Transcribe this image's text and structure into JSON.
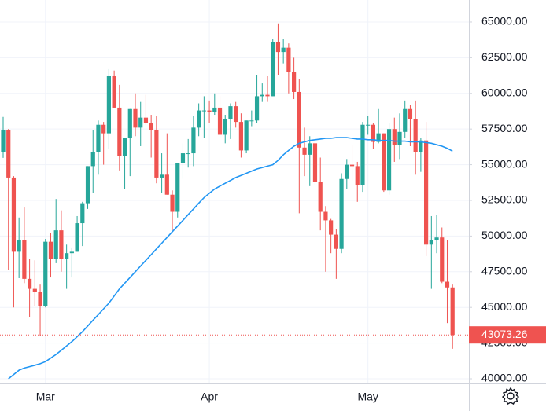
{
  "chart_data": {
    "type": "candlestick",
    "up_color": "#26a69a",
    "down_color": "#ef5350",
    "grid": true,
    "ylim": [
      39670,
      66540
    ],
    "yticks": [
      {
        "value": 40000,
        "label": "40000.00"
      },
      {
        "value": 42500,
        "label": "42500.00"
      },
      {
        "value": 45000,
        "label": "45000.00"
      },
      {
        "value": 47500,
        "label": "47500.00"
      },
      {
        "value": 50000,
        "label": "50000.00"
      },
      {
        "value": 52500,
        "label": "52500.00"
      },
      {
        "value": 55000,
        "label": "55000.00"
      },
      {
        "value": 57500,
        "label": "57500.00"
      },
      {
        "value": 60000,
        "label": "60000.00"
      },
      {
        "value": 62500,
        "label": "62500.00"
      },
      {
        "value": 65000,
        "label": "65000.00"
      }
    ],
    "categories": [
      null,
      null,
      null,
      null,
      null,
      null,
      null,
      null,
      "Mar",
      null,
      null,
      null,
      null,
      null,
      null,
      null,
      null,
      null,
      null,
      null,
      null,
      null,
      null,
      null,
      null,
      null,
      null,
      null,
      null,
      null,
      null,
      null,
      null,
      null,
      null,
      null,
      null,
      null,
      null,
      "Apr",
      null,
      null,
      null,
      null,
      null,
      null,
      null,
      null,
      null,
      null,
      null,
      null,
      null,
      null,
      null,
      null,
      null,
      null,
      null,
      null,
      null,
      null,
      null,
      null,
      null,
      null,
      null,
      null,
      null,
      "May",
      null,
      null,
      null,
      null,
      null,
      null,
      null,
      null,
      null,
      null,
      null,
      null,
      null,
      null,
      null,
      null
    ],
    "open": [
      55900,
      57400,
      54100,
      48900,
      49700,
      47000,
      46300,
      46100,
      45100,
      49600,
      48400,
      50400,
      48400,
      48800,
      48900,
      50900,
      52300,
      54900,
      55900,
      57800,
      57200,
      61200,
      59000,
      55600,
      56900,
      58900,
      57600,
      58300,
      57900,
      57400,
      54100,
      54300,
      52900,
      51700,
      55100,
      55800,
      55800,
      57600,
      58800,
      58800,
      58700,
      59000,
      57100,
      58200,
      59100,
      58000,
      56000,
      58100,
      58100,
      59800,
      59900,
      59800,
      63600,
      62900,
      63200,
      61500,
      60100,
      56200,
      55700,
      56500,
      53800,
      51700,
      51100,
      50100,
      49100,
      54000,
      55000,
      54900,
      53600,
      57800,
      57800,
      56600,
      57200,
      53200,
      57500,
      56400,
      57300,
      58900,
      58200,
      55900,
      56700,
      49400,
      49700,
      49900,
      46800,
      46400
    ],
    "high": [
      58350,
      57500,
      54200,
      51300,
      52000,
      48400,
      48300,
      46600,
      49800,
      50200,
      52600,
      51800,
      49400,
      49200,
      51400,
      52400,
      54900,
      57400,
      58100,
      58000,
      61700,
      61600,
      60600,
      56900,
      58900,
      60000,
      59400,
      59900,
      58500,
      58400,
      55800,
      57200,
      53200,
      55100,
      56500,
      56800,
      58400,
      59300,
      59800,
      59500,
      60000,
      59800,
      58500,
      59300,
      59400,
      58600,
      58100,
      58800,
      61300,
      60700,
      61200,
      63800,
      64900,
      63800,
      63500,
      62500,
      61000,
      57600,
      57000,
      56800,
      55500,
      52100,
      51200,
      50500,
      54400,
      55400,
      56400,
      55200,
      58000,
      58400,
      57900,
      58900,
      57200,
      57900,
      58300,
      58600,
      59500,
      59200,
      59500,
      56900,
      58000,
      51400,
      51500,
      50600,
      49700,
      46600
    ],
    "low": [
      55480,
      47600,
      45000,
      47050,
      46700,
      44300,
      45100,
      43000,
      45000,
      47100,
      48100,
      47500,
      46300,
      47100,
      48900,
      49300,
      51900,
      53000,
      54300,
      55000,
      56100,
      59000,
      54600,
      53300,
      54200,
      57000,
      56300,
      57800,
      55500,
      53700,
      53000,
      52900,
      50400,
      51300,
      54000,
      54800,
      54900,
      57000,
      56900,
      57900,
      58500,
      56900,
      56500,
      56800,
      57600,
      55500,
      55800,
      57700,
      57900,
      59400,
      59400,
      59800,
      61300,
      62100,
      60000,
      59600,
      51600,
      54200,
      53500,
      53600,
      50400,
      47500,
      48800,
      47000,
      48800,
      53300,
      53900,
      52400,
      53100,
      57100,
      56100,
      56500,
      53100,
      52900,
      55200,
      55400,
      56900,
      56300,
      54300,
      54500,
      48600,
      46300,
      48800,
      46700,
      43900,
      42100
    ],
    "close": [
      57400,
      54100,
      48900,
      49700,
      47000,
      46300,
      46100,
      45100,
      49600,
      48400,
      50400,
      48400,
      48800,
      48900,
      50900,
      52300,
      54900,
      55900,
      57800,
      57200,
      61200,
      59000,
      55600,
      56900,
      58900,
      57600,
      58300,
      57900,
      57400,
      54100,
      54300,
      52900,
      51700,
      55100,
      55800,
      55800,
      57600,
      58800,
      58800,
      58700,
      59000,
      57100,
      58200,
      59100,
      58000,
      56000,
      58100,
      58100,
      59800,
      59900,
      59800,
      63600,
      62900,
      63200,
      61500,
      60100,
      56200,
      55700,
      56500,
      53800,
      51700,
      51100,
      50100,
      49100,
      54000,
      55000,
      54900,
      53600,
      57800,
      57800,
      56600,
      57200,
      53200,
      57500,
      56400,
      57300,
      58900,
      58200,
      55900,
      56700,
      49400,
      49700,
      49900,
      46800,
      46400,
      43073.26
    ],
    "moving_average": {
      "color": "#2196f3",
      "values": [
        null,
        40000,
        40300,
        40600,
        40750,
        40850,
        40950,
        41050,
        41200,
        41450,
        41700,
        42000,
        42300,
        42600,
        42950,
        43300,
        43700,
        44100,
        44500,
        44900,
        45300,
        45800,
        46300,
        46700,
        47100,
        47500,
        47900,
        48300,
        48700,
        49100,
        49500,
        49900,
        50300,
        50700,
        51100,
        51500,
        51900,
        52300,
        52700,
        53000,
        53300,
        53500,
        53700,
        53900,
        54100,
        54250,
        54400,
        54550,
        54700,
        54800,
        54900,
        55000,
        55300,
        55700,
        56000,
        56300,
        56500,
        56600,
        56700,
        56750,
        56800,
        56850,
        56850,
        56900,
        56900,
        56900,
        56850,
        56800,
        56800,
        56750,
        56750,
        56700,
        56700,
        56700,
        56650,
        56650,
        56650,
        56600,
        56600,
        56600,
        56550,
        56500,
        56400,
        56300,
        56150,
        55950
      ]
    }
  }
}
